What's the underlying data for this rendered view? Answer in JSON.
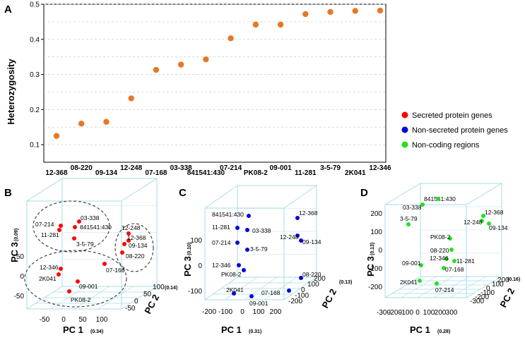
{
  "chart_data": [
    {
      "panel": "A",
      "type": "scatter",
      "ylabel": "Heterozygosity",
      "ylim": [
        0.05,
        0.5
      ],
      "yticks": [
        "0.1",
        "0.2",
        "0.3",
        "0.4",
        "0.5"
      ],
      "yticks_values": [
        0.1,
        0.2,
        0.3,
        0.4,
        0.5
      ],
      "categories": [
        "12-368",
        "08-220",
        "09-134",
        "12-248",
        "07-168",
        "03-338",
        "841541:430",
        "07-214",
        "PK08-2",
        "09-001",
        "11-281",
        "3-5-79",
        "2K041",
        "12-346"
      ],
      "values": [
        0.125,
        0.16,
        0.165,
        0.232,
        0.313,
        0.328,
        0.343,
        0.403,
        0.442,
        0.442,
        0.472,
        0.478,
        0.481,
        0.482
      ],
      "color": "#e87722",
      "legend": [
        {
          "label": "Secreted protein genes",
          "color": "#ff0000"
        },
        {
          "label": "Non-secreted protein genes",
          "color": "#0000e0"
        },
        {
          "label": "Non-coding regions",
          "color": "#22e022"
        }
      ]
    },
    {
      "panel": "B",
      "type": "scatter",
      "color": "#ff0000",
      "xlabel": "PC 1",
      "xlabel_pct": "(0.34)",
      "ylabel": "PC 2",
      "ylabel_pct": "(0.14)",
      "zlabel": "PC 3",
      "zlabel_pct": "(0.09)",
      "xticks": [
        "-50",
        "0",
        "50",
        "100"
      ],
      "yticks": [
        "-50",
        "0",
        "50",
        "100"
      ],
      "zticks": [
        "-50",
        "0",
        "50"
      ],
      "points": [
        {
          "label": "03-338"
        },
        {
          "label": "07-214"
        },
        {
          "label": "841541:430"
        },
        {
          "label": "11-281"
        },
        {
          "label": "3-5-79"
        },
        {
          "label": "12-248"
        },
        {
          "label": "12-368"
        },
        {
          "label": "09-134"
        },
        {
          "label": "08-220"
        },
        {
          "label": "07-168"
        },
        {
          "label": "12-346"
        },
        {
          "label": "2K041"
        },
        {
          "label": "09-001"
        },
        {
          "label": "PK08-2"
        }
      ]
    },
    {
      "panel": "C",
      "type": "scatter",
      "color": "#0000e0",
      "xlabel": "PC 1",
      "xlabel_pct": "(0.31)",
      "ylabel": "PC 2",
      "ylabel_pct": "(0.13)",
      "zlabel": "PC 3",
      "zlabel_pct": "(0.10)",
      "xticks": [
        "-200",
        "-100",
        "0",
        "100",
        "200"
      ],
      "yticks": [
        "-200",
        "-100",
        "0",
        "100",
        "200"
      ],
      "zticks": [
        "-100",
        "0",
        "100"
      ],
      "points": [
        {
          "label": "841541:430"
        },
        {
          "label": "11-281"
        },
        {
          "label": "03-338"
        },
        {
          "label": "07-214"
        },
        {
          "label": "3-5-79"
        },
        {
          "label": "12-346"
        },
        {
          "label": "PK08-2"
        },
        {
          "label": "12-368"
        },
        {
          "label": "12-248"
        },
        {
          "label": "09-134"
        },
        {
          "label": "08-220"
        },
        {
          "label": "2K041"
        },
        {
          "label": "07-168"
        },
        {
          "label": "09-001"
        }
      ]
    },
    {
      "panel": "D",
      "type": "scatter",
      "color": "#22e022",
      "xlabel": "PC 1",
      "xlabel_pct": "(0.28)",
      "ylabel": "PC 2",
      "ylabel_pct": "(0.16)",
      "zlabel": "PC 3",
      "zlabel_pct": "(0.13)",
      "xticks": [
        "-300",
        "-200",
        "-100",
        "0",
        "100",
        "200",
        "300"
      ],
      "yticks": [
        "-300",
        "-200",
        "-100",
        "0",
        "100",
        "200"
      ],
      "zticks": [
        "-200",
        "-100",
        "0",
        "100",
        "200"
      ],
      "points": [
        {
          "label": "841541:430"
        },
        {
          "label": "03-338"
        },
        {
          "label": "3-5-79"
        },
        {
          "label": "12-368"
        },
        {
          "label": "12-248"
        },
        {
          "label": "09-134"
        },
        {
          "label": "PK08-2"
        },
        {
          "label": "08-220"
        },
        {
          "label": "12-346"
        },
        {
          "label": "09-001"
        },
        {
          "label": "11-281"
        },
        {
          "label": "07-168"
        },
        {
          "label": "2K041"
        },
        {
          "label": "07-214"
        }
      ]
    }
  ]
}
